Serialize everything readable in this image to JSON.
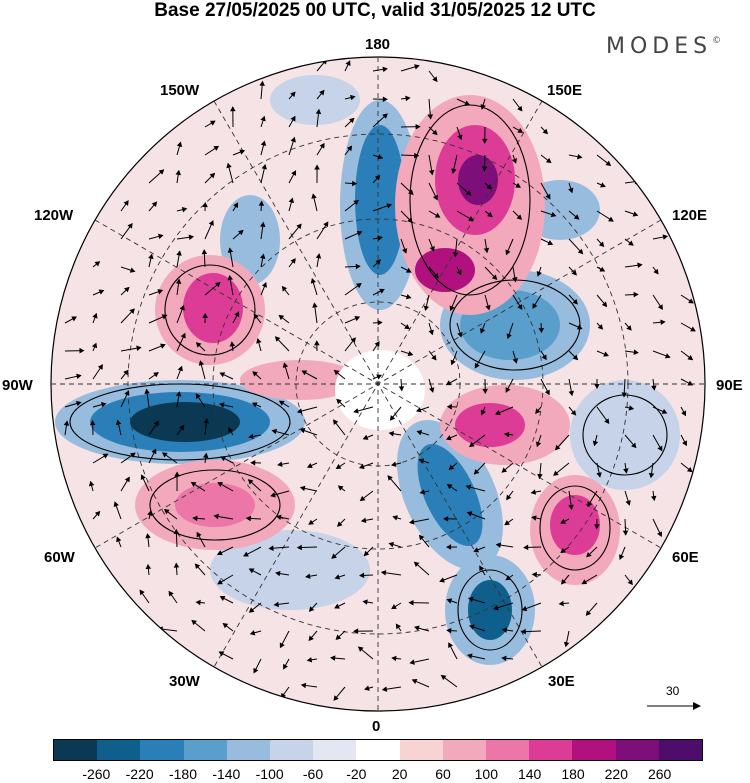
{
  "title": "Base 27/05/2025 00 UTC, valid 31/05/2025 12 UTC",
  "brand": "MODES",
  "brand_mark": "©",
  "map": {
    "projection": "polar-stereographic-north",
    "longitude_labels": {
      "top": "180",
      "top_right": "150E",
      "upper_right": "120E",
      "right": "90E",
      "lower_right": "60E",
      "bottom_right": "30E",
      "bottom": "0",
      "bottom_left": "30W",
      "lower_left": "60W",
      "left": "90W",
      "upper_left": "120W",
      "top_left": "150W"
    }
  },
  "reference_vector": {
    "value": "30"
  },
  "colorbar": {
    "ticks": [
      "-260",
      "-220",
      "-180",
      "-140",
      "-100",
      "-60",
      "-20",
      "20",
      "60",
      "100",
      "140",
      "180",
      "220",
      "260"
    ],
    "colors": [
      "#0b3954",
      "#0f5f8c",
      "#2b7fb8",
      "#5a9fcc",
      "#98bcdd",
      "#c6d3e8",
      "#e4e6f2",
      "#ffffff",
      "#f7d3d4",
      "#f2a9bb",
      "#ec76a8",
      "#dc3c96",
      "#b0117f",
      "#7d0e7a",
      "#4e0c6b"
    ]
  }
}
